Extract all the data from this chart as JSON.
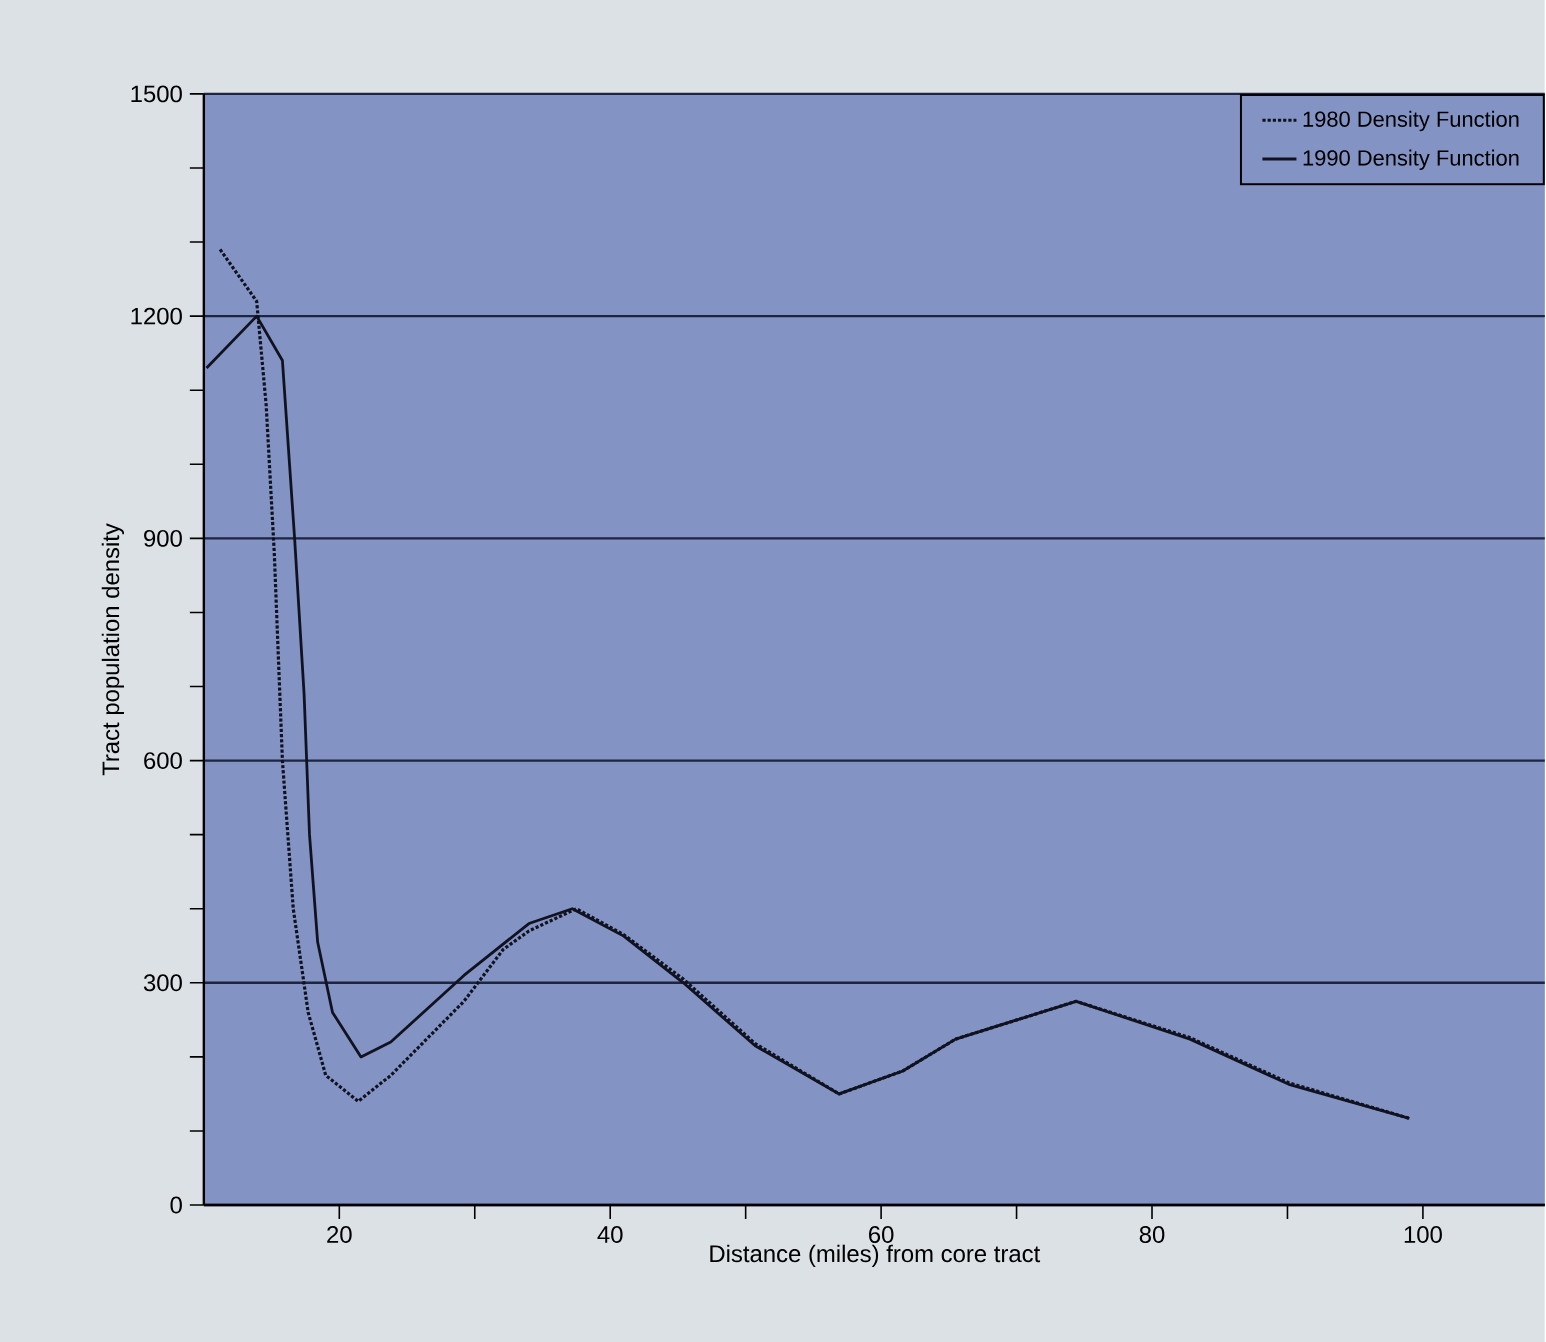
{
  "chart_data": {
    "type": "line",
    "xlabel": "Distance (miles) from core tract",
    "ylabel": "Tract population density",
    "xlim": [
      10,
      109
    ],
    "xticks": [
      20,
      {
        "value": 30,
        "label": null
      },
      40,
      {
        "value": 50,
        "label": null
      },
      60,
      {
        "value": 70,
        "label": null
      },
      80,
      {
        "value": 90,
        "label": null
      },
      100
    ],
    "ylim": [
      0,
      1500
    ],
    "yticks": [
      0,
      {
        "value": 100,
        "label": null
      },
      {
        "value": 200,
        "label": null
      },
      300,
      {
        "value": 400,
        "label": null
      },
      {
        "value": 500,
        "label": null
      },
      600,
      {
        "value": 700,
        "label": null
      },
      {
        "value": 800,
        "label": null
      },
      900,
      {
        "value": 1000,
        "label": null
      },
      {
        "value": 1100,
        "label": null
      },
      1200,
      {
        "value": 1300,
        "label": null
      },
      {
        "value": 1400,
        "label": null
      },
      1500
    ],
    "grid": "y",
    "legend": "top right",
    "marker": "none",
    "series": [
      {
        "name": "1980 Density Function",
        "color": "#10131f",
        "line_style": "dotted",
        "x": [
          11.2,
          13.9,
          14.6,
          15.2,
          15.8,
          16.6,
          17.7,
          19,
          21.4,
          23.8,
          29.2,
          32.1,
          34,
          37.5,
          41,
          45.4,
          50.7,
          56.9,
          61.6,
          65.5,
          74.4,
          82.8,
          90.1,
          99
        ],
        "values": [
          1290,
          1220,
          1080,
          880,
          600,
          400,
          260,
          175,
          140,
          175,
          275,
          345,
          370,
          400,
          365,
          305,
          218,
          150,
          181,
          224,
          275,
          226,
          165,
          117
        ]
      },
      {
        "name": "1990 Density Function",
        "color": "#10131f",
        "line_style": "solid",
        "x": [
          10.2,
          13.9,
          15.8,
          16.7,
          17.4,
          17.8,
          18.4,
          19.5,
          21.6,
          23.8,
          29.2,
          34,
          37.2,
          41,
          45.4,
          50.7,
          56.9,
          61.6,
          65.5,
          74.4,
          82.8,
          90.1,
          99
        ],
        "values": [
          1130,
          1200,
          1140,
          900,
          690,
          500,
          355,
          260,
          200,
          220,
          310,
          380,
          400,
          363,
          300,
          215,
          150,
          181,
          224,
          275,
          224,
          163,
          117
        ]
      }
    ]
  }
}
